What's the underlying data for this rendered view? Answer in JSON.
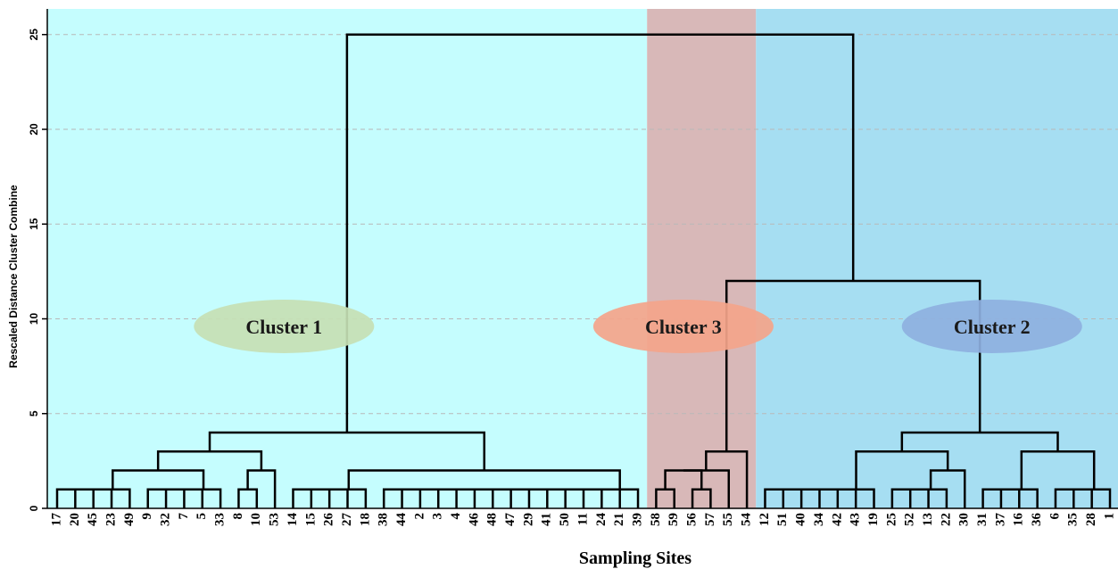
{
  "chart_data": {
    "type": "dendrogram",
    "xlabel": "Sampling Sites",
    "ylabel": "Rescaled Distance Cluster Combine",
    "ylim": [
      0,
      26.5
    ],
    "yticks": [
      0,
      5,
      10,
      15,
      20,
      25
    ],
    "grid": "horizontal dashed",
    "leaves": [
      "17",
      "20",
      "45",
      "23",
      "49",
      "9",
      "32",
      "7",
      "5",
      "33",
      "8",
      "10",
      "53",
      "14",
      "15",
      "26",
      "27",
      "18",
      "38",
      "44",
      "2",
      "3",
      "4",
      "46",
      "48",
      "47",
      "29",
      "41",
      "50",
      "11",
      "24",
      "21",
      "39",
      "58",
      "59",
      "56",
      "57",
      "55",
      "54",
      "12",
      "51",
      "40",
      "34",
      "42",
      "43",
      "19",
      "25",
      "52",
      "13",
      "22",
      "30",
      "31",
      "37",
      "16",
      "36",
      "6",
      "35",
      "28",
      "1"
    ],
    "merges": [
      {
        "a": "17",
        "b": "20",
        "h": 1
      },
      {
        "a": "m0",
        "b": "45",
        "h": 1
      },
      {
        "a": "m1",
        "b": "23",
        "h": 1
      },
      {
        "a": "m2",
        "b": "49",
        "h": 1
      },
      {
        "a": "9",
        "b": "32",
        "h": 1
      },
      {
        "a": "m4",
        "b": "7",
        "h": 1
      },
      {
        "a": "m5",
        "b": "5",
        "h": 1
      },
      {
        "a": "m6",
        "b": "33",
        "h": 1
      },
      {
        "a": "m3",
        "b": "m7",
        "h": 2
      },
      {
        "a": "8",
        "b": "10",
        "h": 1
      },
      {
        "a": "m9",
        "b": "53",
        "h": 2
      },
      {
        "a": "m8",
        "b": "m10",
        "h": 3
      },
      {
        "a": "14",
        "b": "15",
        "h": 1
      },
      {
        "a": "m12",
        "b": "26",
        "h": 1
      },
      {
        "a": "m13",
        "b": "27",
        "h": 1
      },
      {
        "a": "m14",
        "b": "18",
        "h": 1
      },
      {
        "a": "38",
        "b": "44",
        "h": 1
      },
      {
        "a": "m16",
        "b": "2",
        "h": 1
      },
      {
        "a": "m17",
        "b": "3",
        "h": 1
      },
      {
        "a": "m18",
        "b": "4",
        "h": 1
      },
      {
        "a": "m19",
        "b": "46",
        "h": 1
      },
      {
        "a": "m20",
        "b": "48",
        "h": 1
      },
      {
        "a": "m21",
        "b": "47",
        "h": 1
      },
      {
        "a": "m22",
        "b": "29",
        "h": 1
      },
      {
        "a": "m23",
        "b": "41",
        "h": 1
      },
      {
        "a": "m24",
        "b": "50",
        "h": 1
      },
      {
        "a": "m25",
        "b": "11",
        "h": 1
      },
      {
        "a": "m26",
        "b": "24",
        "h": 1
      },
      {
        "a": "m27",
        "b": "21",
        "h": 1
      },
      {
        "a": "m28",
        "b": "39",
        "h": 1
      },
      {
        "a": "m15",
        "b": "m29",
        "h": 2
      },
      {
        "a": "m11",
        "b": "m30",
        "h": 4
      },
      {
        "a": "58",
        "b": "59",
        "h": 1
      },
      {
        "a": "56",
        "b": "57",
        "h": 1
      },
      {
        "a": "m32",
        "b": "m33",
        "h": 2
      },
      {
        "a": "m34",
        "b": "55",
        "h": 2
      },
      {
        "a": "m35",
        "b": "54",
        "h": 3
      },
      {
        "a": "12",
        "b": "51",
        "h": 1
      },
      {
        "a": "m37",
        "b": "40",
        "h": 1
      },
      {
        "a": "m38",
        "b": "34",
        "h": 1
      },
      {
        "a": "m39",
        "b": "42",
        "h": 1
      },
      {
        "a": "m40",
        "b": "43",
        "h": 1
      },
      {
        "a": "m41",
        "b": "19",
        "h": 1
      },
      {
        "a": "25",
        "b": "52",
        "h": 1
      },
      {
        "a": "m43",
        "b": "13",
        "h": 1
      },
      {
        "a": "m44",
        "b": "22",
        "h": 1
      },
      {
        "a": "m45",
        "b": "30",
        "h": 2
      },
      {
        "a": "m42",
        "b": "m46",
        "h": 3
      },
      {
        "a": "31",
        "b": "37",
        "h": 1
      },
      {
        "a": "m48",
        "b": "16",
        "h": 1
      },
      {
        "a": "m49",
        "b": "36",
        "h": 1
      },
      {
        "a": "6",
        "b": "35",
        "h": 1
      },
      {
        "a": "m51",
        "b": "28",
        "h": 1
      },
      {
        "a": "m52",
        "b": "1",
        "h": 1
      },
      {
        "a": "m50",
        "b": "m53",
        "h": 3
      },
      {
        "a": "m47",
        "b": "m54",
        "h": 4
      },
      {
        "a": "m36",
        "b": "m55",
        "h": 12
      },
      {
        "a": "m31",
        "b": "m56",
        "h": 25
      }
    ],
    "regions": [
      {
        "from": "17",
        "to": "39",
        "color": "#c5fdfe"
      },
      {
        "from": "58",
        "to": "54",
        "color": "#d8b8b8"
      },
      {
        "from": "12",
        "to": "1",
        "color": "#a6def2"
      }
    ],
    "annotations": [
      {
        "text": "Cluster 1",
        "anchor_leaf_index": 12.5,
        "y": 9.6,
        "fill": "#c5dfb4",
        "text_color": "#1a1a1a"
      },
      {
        "text": "Cluster 3",
        "anchor_leaf_index": 34.5,
        "y": 9.6,
        "fill": "#f4a48a",
        "text_color": "#1a1a1a"
      },
      {
        "text": "Cluster 2",
        "anchor_leaf_index": 51.5,
        "y": 9.6,
        "fill": "#8eb0e0",
        "text_color": "#1a1a1a"
      }
    ]
  }
}
